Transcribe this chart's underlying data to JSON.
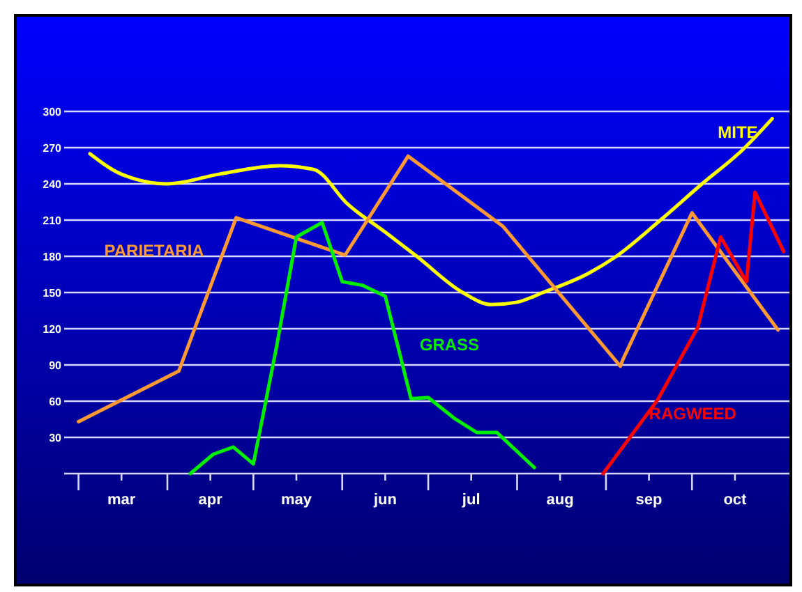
{
  "chart_data": {
    "type": "line",
    "xlim": [
      "--02-24",
      "--11-04"
    ],
    "ylim": [
      0,
      300
    ],
    "xticks": [
      {
        "value": "--03-01",
        "label": null
      },
      {
        "value": "--03-16",
        "label": "mar"
      },
      {
        "value": "--04-01",
        "label": null
      },
      {
        "value": "--04-16",
        "label": "apr"
      },
      {
        "value": "--05-01",
        "label": null
      },
      {
        "value": "--05-16",
        "label": "may"
      },
      {
        "value": "--06-01",
        "label": null
      },
      {
        "value": "--06-16",
        "label": "jun"
      },
      {
        "value": "--07-01",
        "label": null
      },
      {
        "value": "--07-16",
        "label": "jul"
      },
      {
        "value": "--08-01",
        "label": null
      },
      {
        "value": "--08-16",
        "label": "aug"
      },
      {
        "value": "--09-01",
        "label": null
      },
      {
        "value": "--09-16",
        "label": "sep"
      },
      {
        "value": "--10-01",
        "label": null
      },
      {
        "value": "--10-16",
        "label": "oct"
      }
    ],
    "yticks": [
      30,
      60,
      90,
      120,
      150,
      180,
      210,
      240,
      270,
      300
    ],
    "grid": "y",
    "marker": "none",
    "series": [
      {
        "name": "MITE",
        "color": "#ffff00",
        "x": [
          "--03-05",
          "--03-16",
          "--04-01",
          "--04-19",
          "--05-10",
          "--05-22",
          "--06-03",
          "--06-16",
          "--06-27",
          "--07-13",
          "--07-23",
          "--08-01",
          "--08-10",
          "--08-26",
          "--09-04",
          "--09-20",
          "--10-04",
          "--10-19",
          "--10-29"
        ],
        "values": [
          265,
          248,
          240,
          248,
          255,
          252,
          223,
          200,
          180,
          150,
          140,
          142,
          150,
          166,
          179,
          210,
          239,
          269,
          294
        ]
      },
      {
        "name": "PARIETARIA",
        "color": "#ff9933",
        "x": [
          "--03-01",
          "--04-05",
          "--04-25",
          "--06-02",
          "--06-24",
          "--07-27",
          "--09-06",
          "--09-07",
          "--10-01",
          "--10-31"
        ],
        "values": [
          43,
          85,
          212,
          181,
          263,
          205,
          89,
          95,
          216,
          119
        ]
      },
      {
        "name": "GRASS",
        "color": "#00ee00",
        "x": [
          "--04-09",
          "--04-17",
          "--04-24",
          "--05-01",
          "--05-09",
          "--05-16",
          "--05-25",
          "--06-01",
          "--06-08",
          "--06-16",
          "--06-25",
          "--07-01",
          "--07-10",
          "--07-18",
          "--07-25",
          "--08-07"
        ],
        "values": [
          0,
          16,
          22,
          8,
          104,
          196,
          208,
          159,
          156,
          147,
          62,
          63,
          46,
          34,
          34,
          5
        ]
      },
      {
        "name": "RAGWEED",
        "color": "#ff0000",
        "x": [
          "--08-31",
          "--09-19",
          "--10-03",
          "--10-11",
          "--10-20",
          "--10-23",
          "--11-02"
        ],
        "values": [
          0,
          61,
          121,
          196,
          159,
          233,
          184
        ]
      }
    ]
  }
}
